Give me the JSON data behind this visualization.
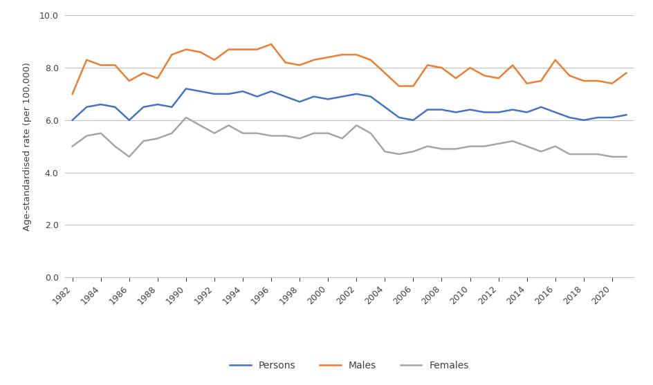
{
  "years": [
    1982,
    1983,
    1984,
    1985,
    1986,
    1987,
    1988,
    1989,
    1990,
    1991,
    1992,
    1993,
    1994,
    1995,
    1996,
    1997,
    1998,
    1999,
    2000,
    2001,
    2002,
    2003,
    2004,
    2005,
    2006,
    2007,
    2008,
    2009,
    2010,
    2011,
    2012,
    2013,
    2014,
    2015,
    2016,
    2017,
    2018,
    2019,
    2020,
    2021
  ],
  "persons": [
    6.0,
    6.5,
    6.6,
    6.5,
    6.0,
    6.5,
    6.6,
    6.5,
    7.2,
    7.1,
    7.0,
    7.0,
    7.1,
    6.9,
    7.1,
    6.9,
    6.7,
    6.9,
    6.8,
    6.9,
    7.0,
    6.9,
    6.5,
    6.1,
    6.0,
    6.4,
    6.4,
    6.3,
    6.4,
    6.3,
    6.3,
    6.4,
    6.3,
    6.5,
    6.3,
    6.1,
    6.0,
    6.1,
    6.1,
    6.2
  ],
  "males": [
    7.0,
    8.3,
    8.1,
    8.1,
    7.5,
    7.8,
    7.6,
    8.5,
    8.7,
    8.6,
    8.3,
    8.7,
    8.7,
    8.7,
    8.9,
    8.2,
    8.1,
    8.3,
    8.4,
    8.5,
    8.5,
    8.3,
    7.8,
    7.3,
    7.3,
    8.1,
    8.0,
    7.6,
    8.0,
    7.7,
    7.6,
    8.1,
    7.4,
    7.5,
    8.3,
    7.7,
    7.5,
    7.5,
    7.4,
    7.8
  ],
  "females": [
    5.0,
    5.4,
    5.5,
    5.0,
    4.6,
    5.2,
    5.3,
    5.5,
    6.1,
    5.8,
    5.5,
    5.8,
    5.5,
    5.5,
    5.4,
    5.4,
    5.3,
    5.5,
    5.5,
    5.3,
    5.8,
    5.5,
    4.8,
    4.7,
    4.8,
    5.0,
    4.9,
    4.9,
    5.0,
    5.0,
    5.1,
    5.2,
    5.0,
    4.8,
    5.0,
    4.7,
    4.7,
    4.7,
    4.6,
    4.6
  ],
  "persons_color": "#4472C4",
  "males_color": "#ED7D31",
  "females_color": "#A5A5A5",
  "ylabel": "Age-standardised rate (per 100,000)",
  "ylim_min": 0.0,
  "ylim_max": 10.0,
  "yticks": [
    0.0,
    2.0,
    4.0,
    6.0,
    8.0,
    10.0
  ],
  "xtick_years": [
    1982,
    1984,
    1986,
    1988,
    1990,
    1992,
    1994,
    1996,
    1998,
    2000,
    2002,
    2004,
    2006,
    2008,
    2010,
    2012,
    2014,
    2016,
    2018,
    2020
  ],
  "legend_labels": [
    "Persons",
    "Males",
    "Females"
  ],
  "line_width": 1.8,
  "bg_color": "#ffffff",
  "grid_color": "#C0C0C0",
  "spine_color": "#C0C0C0"
}
